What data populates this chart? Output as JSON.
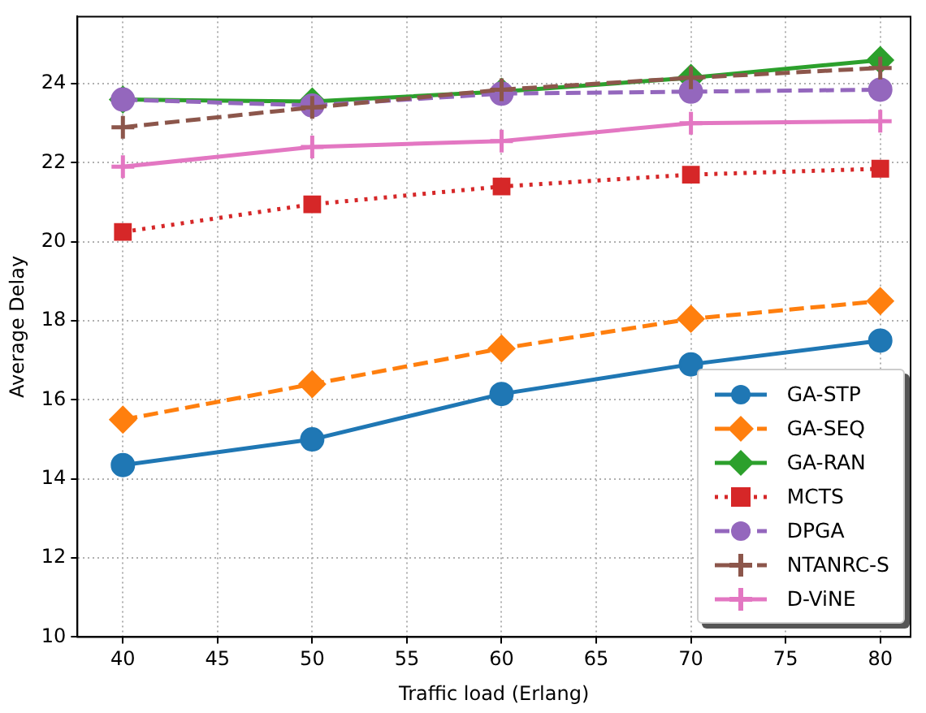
{
  "chart_data": {
    "type": "line",
    "xlabel": "Traffic load (Erlang)",
    "ylabel": "Average Delay",
    "x": [
      40,
      50,
      60,
      70,
      80
    ],
    "xlim": [
      37.6,
      81.6
    ],
    "xticks": [
      40,
      45,
      50,
      55,
      60,
      65,
      70,
      75,
      80
    ],
    "ylim": [
      10,
      25.7
    ],
    "yticks": [
      10,
      12,
      14,
      16,
      18,
      20,
      22,
      24
    ],
    "grid": true,
    "legend": "bottom right",
    "series": [
      {
        "name": "GA-STP",
        "color": "#1f77b4",
        "marker": "circle",
        "line_style": "solid",
        "values": [
          14.35,
          15.0,
          16.15,
          16.9,
          17.5
        ]
      },
      {
        "name": "GA-SEQ",
        "color": "#ff7f0e",
        "marker": "diamond",
        "line_style": "dashed",
        "values": [
          15.5,
          16.4,
          17.3,
          18.05,
          18.5
        ]
      },
      {
        "name": "GA-RAN",
        "color": "#2ca02c",
        "marker": "diamond",
        "line_style": "solid",
        "values": [
          23.6,
          23.55,
          23.8,
          24.15,
          24.6
        ]
      },
      {
        "name": "MCTS",
        "color": "#d62728",
        "marker": "square",
        "line_style": "dotted",
        "values": [
          20.25,
          20.95,
          21.4,
          21.7,
          21.85
        ]
      },
      {
        "name": "DPGA",
        "color": "#9467bd",
        "marker": "circle",
        "line_style": "dashed",
        "values": [
          23.6,
          23.45,
          23.75,
          23.8,
          23.85
        ]
      },
      {
        "name": "NTANRC-S",
        "color": "#8c564b",
        "marker": "cross",
        "line_style": "dashed",
        "values": [
          22.9,
          23.4,
          23.85,
          24.15,
          24.4
        ]
      },
      {
        "name": "D-ViNE",
        "color": "#e377c2",
        "marker": "cross",
        "line_style": "solid",
        "values": [
          21.9,
          22.4,
          22.55,
          23.0,
          23.05
        ]
      }
    ]
  }
}
